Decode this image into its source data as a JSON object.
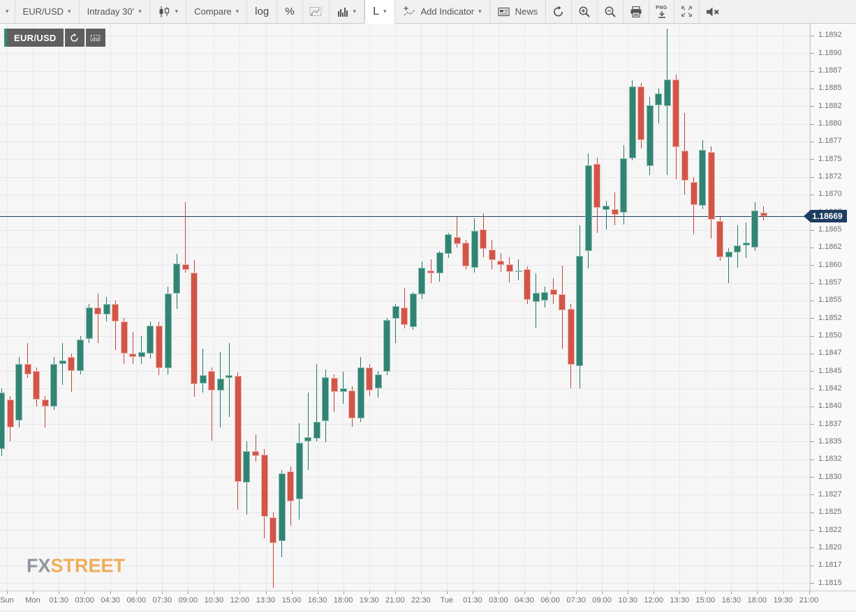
{
  "toolbar": {
    "menu_caret": "▾",
    "symbol_button": "EUR/USD",
    "interval_button": "Intraday 30'",
    "compare_button": "Compare",
    "log_button": "log",
    "percent_button": "%",
    "chart_style_button": "L",
    "add_indicator_button": "Add Indicator",
    "news_button": "News",
    "png_label": "PNG"
  },
  "chip": {
    "symbol": "EUR/USD"
  },
  "watermark": {
    "fx": "FX",
    "street": "STREET"
  },
  "price_axis": {
    "current_price": "1.18669",
    "ticks": [
      "1.1892",
      "1.1890",
      "1.1887",
      "1.1885",
      "1.1882",
      "1.1880",
      "1.1877",
      "1.1875",
      "1.1872",
      "1.1870",
      "1.1867",
      "1.1865",
      "1.1862",
      "1.1860",
      "1.1857",
      "1.1855",
      "1.1852",
      "1.1850",
      "1.1847",
      "1.1845",
      "1.1842",
      "1.1840",
      "1.1837",
      "1.1835",
      "1.1832",
      "1.1830",
      "1.1827",
      "1.1825",
      "1.1822",
      "1.1820",
      "1.1817",
      "1.1815"
    ]
  },
  "time_axis": {
    "labels": [
      "Sun",
      "Mon",
      "01:30",
      "03:00",
      "04:30",
      "06:00",
      "07:30",
      "09:00",
      "10:30",
      "12:00",
      "13:30",
      "15:00",
      "16:30",
      "18:00",
      "19:30",
      "21:00",
      "22:30",
      "Tue",
      "01:30",
      "03:00",
      "04:30",
      "06:00",
      "07:30",
      "09:00",
      "10:30",
      "12:00",
      "13:30",
      "15:00",
      "16:30",
      "18:00",
      "19:30",
      "21:00"
    ]
  },
  "colors": {
    "up_fill": "#318473",
    "up_border": "#8FBFB2",
    "up_wick": "#20795F",
    "down_fill": "#D25548",
    "down_border": "#EBB7AF",
    "down_wick": "#C04537",
    "price_line": "#1E3D61",
    "grid": "#E8E8EA",
    "plot_bg": "#F6F6F7",
    "axis_text": "#6E6E6E",
    "toolbar_bg": "#F1F1F1",
    "chip_bg": "#5F5F5F",
    "chip_stripe": "#2E8B74",
    "watermark_fx": "#9196A0",
    "watermark_street": "#EFAE5B"
  },
  "chart_data": {
    "type": "candlestick",
    "symbol": "EUR/USD",
    "interval": "30 minutes",
    "title": "EUR/USD Intraday 30'",
    "current_price": 1.18669,
    "y_range": [
      1.1813,
      1.1894
    ],
    "x_span": "Sun 22:00 through Tue 17:30, 30-minute bars",
    "grid": true,
    "columns": [
      "time",
      "open",
      "high",
      "low",
      "close"
    ],
    "candles": [
      [
        "Sun 22:00",
        1.1834,
        1.18425,
        1.1833,
        1.1842
      ],
      [
        "Sun 22:30",
        1.1841,
        1.18415,
        1.1835,
        1.1837
      ],
      [
        "Sun 23:00",
        1.1838,
        1.1847,
        1.1837,
        1.1846
      ],
      [
        "Sun 23:30",
        1.1846,
        1.1849,
        1.1844,
        1.18445
      ],
      [
        "Mon 00:00",
        1.1845,
        1.18455,
        1.184,
        1.1841
      ],
      [
        "Mon 00:30",
        1.1841,
        1.18415,
        1.1837,
        1.184
      ],
      [
        "Mon 01:00",
        1.184,
        1.1847,
        1.18395,
        1.1846
      ],
      [
        "Mon 01:30",
        1.1846,
        1.1849,
        1.1843,
        1.18465
      ],
      [
        "Mon 02:00",
        1.1847,
        1.18475,
        1.1842,
        1.1845
      ],
      [
        "Mon 02:30",
        1.1845,
        1.185,
        1.18445,
        1.18495
      ],
      [
        "Mon 03:00",
        1.18495,
        1.18545,
        1.1849,
        1.1854
      ],
      [
        "Mon 03:30",
        1.1854,
        1.1856,
        1.1849,
        1.1853
      ],
      [
        "Mon 04:00",
        1.1853,
        1.18555,
        1.1852,
        1.18545
      ],
      [
        "Mon 04:30",
        1.18545,
        1.1855,
        1.1848,
        1.1852
      ],
      [
        "Mon 05:00",
        1.1852,
        1.18525,
        1.1846,
        1.18475
      ],
      [
        "Mon 05:30",
        1.18475,
        1.18505,
        1.1846,
        1.1847
      ],
      [
        "Mon 06:00",
        1.1847,
        1.185,
        1.1846,
        1.18477
      ],
      [
        "Mon 06:30",
        1.18475,
        1.1852,
        1.18468,
        1.18514
      ],
      [
        "Mon 07:00",
        1.18514,
        1.1852,
        1.18444,
        1.18454
      ],
      [
        "Mon 07:30",
        1.18454,
        1.1857,
        1.18445,
        1.1856
      ],
      [
        "Mon 08:00",
        1.1856,
        1.18616,
        1.18538,
        1.18602
      ],
      [
        "Mon 08:30",
        1.18601,
        1.18689,
        1.18589,
        1.18593
      ],
      [
        "Mon 09:00",
        1.18589,
        1.18607,
        1.18414,
        1.18431
      ],
      [
        "Mon 09:30",
        1.18432,
        1.18482,
        1.18419,
        1.18444
      ],
      [
        "Mon 10:00",
        1.1845,
        1.18455,
        1.18351,
        1.18422
      ],
      [
        "Mon 10:30",
        1.18422,
        1.18477,
        1.1837,
        1.18439
      ],
      [
        "Mon 11:00",
        1.1844,
        1.1849,
        1.18385,
        1.18444
      ],
      [
        "Mon 11:30",
        1.18443,
        1.18448,
        1.18254,
        1.18293
      ],
      [
        "Mon 12:00",
        1.18292,
        1.1835,
        1.18247,
        1.18337
      ],
      [
        "Mon 12:30",
        1.18337,
        1.1836,
        1.18322,
        1.1833
      ],
      [
        "Mon 13:00",
        1.18332,
        1.1834,
        1.18213,
        1.18244
      ],
      [
        "Mon 13:30",
        1.18243,
        1.1825,
        1.18143,
        1.18206
      ],
      [
        "Mon 14:00",
        1.18209,
        1.1831,
        1.18186,
        1.18305
      ],
      [
        "Mon 14:30",
        1.18308,
        1.18315,
        1.18231,
        1.18266
      ],
      [
        "Mon 15:00",
        1.18268,
        1.18376,
        1.1824,
        1.18348
      ],
      [
        "Mon 15:30",
        1.1835,
        1.1842,
        1.1831,
        1.18356
      ],
      [
        "Mon 16:00",
        1.18354,
        1.1846,
        1.1835,
        1.18378
      ],
      [
        "Mon 16:30",
        1.18379,
        1.18452,
        1.18349,
        1.18441
      ],
      [
        "Mon 17:00",
        1.1844,
        1.18445,
        1.18392,
        1.1842
      ],
      [
        "Mon 17:30",
        1.1842,
        1.18449,
        1.18404,
        1.18425
      ],
      [
        "Mon 18:00",
        1.18423,
        1.18428,
        1.18371,
        1.18383
      ],
      [
        "Mon 18:30",
        1.18383,
        1.1847,
        1.18378,
        1.18455
      ],
      [
        "Mon 19:00",
        1.18455,
        1.1846,
        1.18415,
        1.18422
      ],
      [
        "Mon 19:30",
        1.18425,
        1.1845,
        1.18413,
        1.18445
      ],
      [
        "Mon 20:00",
        1.18449,
        1.18525,
        1.18444,
        1.18522
      ],
      [
        "Mon 20:30",
        1.18524,
        1.18545,
        1.1849,
        1.18542
      ],
      [
        "Mon 21:00",
        1.1854,
        1.18568,
        1.1851,
        1.18515
      ],
      [
        "Mon 21:30",
        1.18512,
        1.18562,
        1.18508,
        1.1856
      ],
      [
        "Mon 22:00",
        1.18559,
        1.18605,
        1.18552,
        1.18596
      ],
      [
        "Mon 22:30",
        1.18592,
        1.18608,
        1.18574,
        1.18588
      ],
      [
        "Mon 23:00",
        1.18588,
        1.1862,
        1.18576,
        1.18618
      ],
      [
        "Mon 23:30",
        1.18616,
        1.18646,
        1.1861,
        1.18644
      ],
      [
        "Tue 00:00",
        1.1864,
        1.18668,
        1.18625,
        1.1863
      ],
      [
        "Tue 00:30",
        1.18632,
        1.18636,
        1.18594,
        1.18598
      ],
      [
        "Tue 01:00",
        1.18596,
        1.18666,
        1.18589,
        1.18649
      ],
      [
        "Tue 01:30",
        1.18651,
        1.18673,
        1.18611,
        1.18623
      ],
      [
        "Tue 02:00",
        1.18622,
        1.18636,
        1.18594,
        1.18607
      ],
      [
        "Tue 02:30",
        1.18606,
        1.18617,
        1.1859,
        1.186
      ],
      [
        "Tue 03:00",
        1.18601,
        1.18611,
        1.18576,
        1.1859
      ],
      [
        "Tue 03:30",
        1.1859,
        1.18608,
        1.18578,
        1.18592
      ],
      [
        "Tue 04:00",
        1.18594,
        1.18598,
        1.18545,
        1.18551
      ],
      [
        "Tue 04:30",
        1.18548,
        1.18588,
        1.18511,
        1.18561
      ],
      [
        "Tue 05:00",
        1.1855,
        1.1857,
        1.1854,
        1.18562
      ],
      [
        "Tue 05:30",
        1.18566,
        1.18581,
        1.18545,
        1.18558
      ],
      [
        "Tue 06:00",
        1.18559,
        1.18599,
        1.18482,
        1.18536
      ],
      [
        "Tue 06:30",
        1.18538,
        1.18545,
        1.18425,
        1.18459
      ],
      [
        "Tue 07:00",
        1.18457,
        1.18656,
        1.18425,
        1.18613
      ],
      [
        "Tue 07:30",
        1.1862,
        1.18758,
        1.18595,
        1.18741
      ],
      [
        "Tue 08:00",
        1.18743,
        1.18752,
        1.18646,
        1.18681
      ],
      [
        "Tue 08:30",
        1.18678,
        1.18691,
        1.18651,
        1.18684
      ],
      [
        "Tue 09:00",
        1.18679,
        1.18703,
        1.18656,
        1.18671
      ],
      [
        "Tue 09:30",
        1.18674,
        1.1877,
        1.18658,
        1.18751
      ],
      [
        "Tue 10:00",
        1.18751,
        1.18862,
        1.18748,
        1.18853
      ],
      [
        "Tue 10:30",
        1.18853,
        1.18858,
        1.18765,
        1.18777
      ],
      [
        "Tue 11:00",
        1.1874,
        1.18838,
        1.18727,
        1.18826
      ],
      [
        "Tue 11:30",
        1.18826,
        1.1885,
        1.188,
        1.18843
      ],
      [
        "Tue 12:00",
        1.18825,
        1.18935,
        1.18727,
        1.18863
      ],
      [
        "Tue 12:30",
        1.18863,
        1.1887,
        1.18721,
        1.18767
      ],
      [
        "Tue 13:00",
        1.18762,
        1.18815,
        1.187,
        1.1872
      ],
      [
        "Tue 13:30",
        1.18718,
        1.18725,
        1.18644,
        1.18685
      ],
      [
        "Tue 14:00",
        1.18684,
        1.18777,
        1.18679,
        1.18763
      ],
      [
        "Tue 14:30",
        1.1876,
        1.18768,
        1.18638,
        1.18664
      ],
      [
        "Tue 15:00",
        1.18662,
        1.18668,
        1.18606,
        1.18611
      ],
      [
        "Tue 15:30",
        1.18611,
        1.18624,
        1.18574,
        1.18619
      ],
      [
        "Tue 16:00",
        1.18618,
        1.18656,
        1.18596,
        1.18628
      ],
      [
        "Tue 16:30",
        1.18628,
        1.1866,
        1.1861,
        1.18632
      ],
      [
        "Tue 17:00",
        1.18625,
        1.18689,
        1.1862,
        1.18677
      ],
      [
        "Tue 17:30",
        1.18674,
        1.18683,
        1.18663,
        1.18669
      ]
    ]
  }
}
